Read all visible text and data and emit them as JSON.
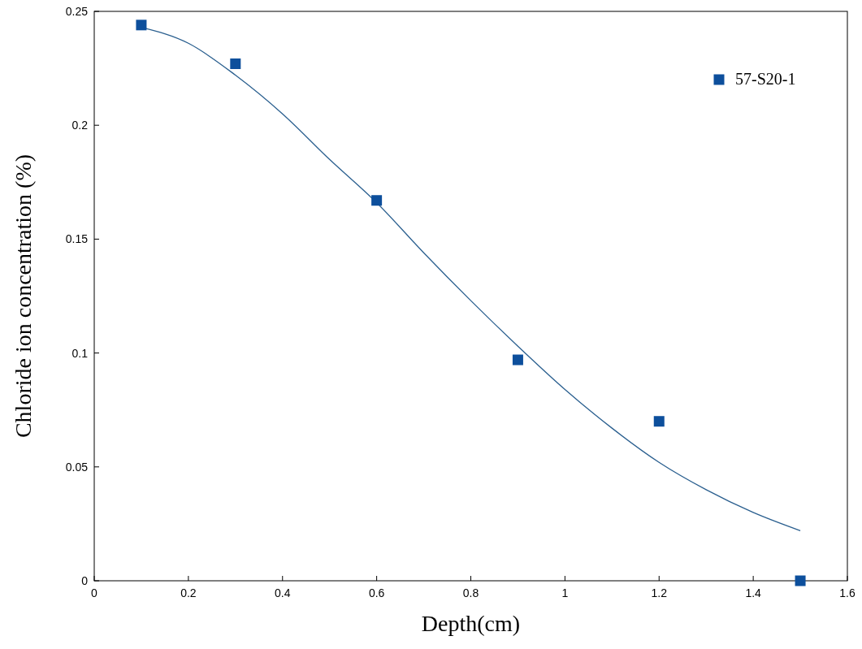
{
  "chart_data": {
    "type": "scatter",
    "xlabel": "Depth(cm)",
    "ylabel": "Chloride ion concentration (%)",
    "xlim": [
      0,
      1.6
    ],
    "xticks": [
      0,
      0.2,
      0.4,
      0.6,
      0.8,
      1,
      1.2,
      1.4,
      1.6
    ],
    "ylim": [
      0,
      0.25
    ],
    "yticks": [
      0,
      0.05,
      0.1,
      0.15,
      0.2,
      0.25
    ],
    "grid": false,
    "legend": "top right",
    "marker": "square",
    "series": [
      {
        "name": "57-S20-1",
        "color": "#0d4f9c",
        "x": [
          0.1,
          0.3,
          0.6,
          0.9,
          1.2,
          1.5
        ],
        "values": [
          0.244,
          0.227,
          0.167,
          0.097,
          0.07,
          0
        ]
      },
      {
        "type": "line",
        "color": "#2a5f8f",
        "line_style": "solid",
        "marker": "none",
        "x": [
          0.1,
          0.2,
          0.3,
          0.4,
          0.5,
          0.6,
          0.7,
          0.8,
          0.9,
          1.0,
          1.1,
          1.2,
          1.3,
          1.4,
          1.5
        ],
        "values": [
          0.243,
          0.236,
          0.222,
          0.205,
          0.185,
          0.166,
          0.144,
          0.123,
          0.103,
          0.084,
          0.067,
          0.052,
          0.04,
          0.03,
          0.022
        ]
      }
    ]
  }
}
